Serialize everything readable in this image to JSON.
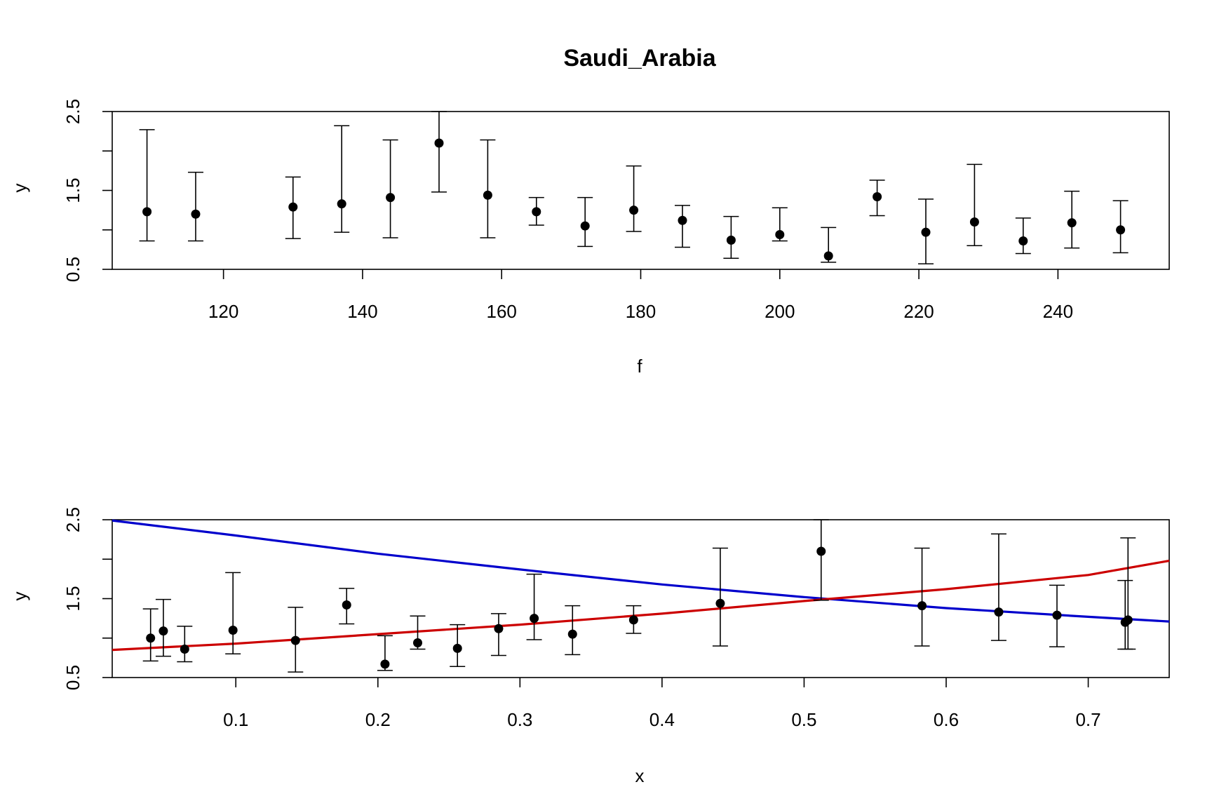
{
  "title": "Saudi_Arabia",
  "chart_data": [
    {
      "type": "scatter",
      "error_bars": true,
      "xlabel": "f",
      "ylabel": "y",
      "xlim": [
        104,
        256
      ],
      "ylim": [
        0.5,
        2.5
      ],
      "xticks": [
        120,
        140,
        160,
        180,
        200,
        220,
        240
      ],
      "yticks": [
        0.5,
        1.5,
        2.5
      ],
      "yticks_minor": [
        1.0,
        2.0
      ],
      "points": [
        {
          "x": 109,
          "y": 1.23,
          "lo": 0.86,
          "hi": 2.27
        },
        {
          "x": 116,
          "y": 1.2,
          "lo": 0.86,
          "hi": 1.73
        },
        {
          "x": 130,
          "y": 1.29,
          "lo": 0.89,
          "hi": 1.67
        },
        {
          "x": 137,
          "y": 1.33,
          "lo": 0.97,
          "hi": 2.32
        },
        {
          "x": 144,
          "y": 1.41,
          "lo": 0.9,
          "hi": 2.14
        },
        {
          "x": 151,
          "y": 2.1,
          "lo": 1.48,
          "hi": 2.5
        },
        {
          "x": 158,
          "y": 1.44,
          "lo": 0.9,
          "hi": 2.14
        },
        {
          "x": 165,
          "y": 1.23,
          "lo": 1.06,
          "hi": 1.41
        },
        {
          "x": 172,
          "y": 1.05,
          "lo": 0.79,
          "hi": 1.41
        },
        {
          "x": 179,
          "y": 1.25,
          "lo": 0.98,
          "hi": 1.81
        },
        {
          "x": 186,
          "y": 1.12,
          "lo": 0.78,
          "hi": 1.31
        },
        {
          "x": 193,
          "y": 0.87,
          "lo": 0.64,
          "hi": 1.17
        },
        {
          "x": 200,
          "y": 0.94,
          "lo": 0.86,
          "hi": 1.28
        },
        {
          "x": 207,
          "y": 0.67,
          "lo": 0.59,
          "hi": 1.03
        },
        {
          "x": 214,
          "y": 1.42,
          "lo": 1.18,
          "hi": 1.63
        },
        {
          "x": 221,
          "y": 0.97,
          "lo": 0.57,
          "hi": 1.39
        },
        {
          "x": 228,
          "y": 1.1,
          "lo": 0.8,
          "hi": 1.83
        },
        {
          "x": 235,
          "y": 0.86,
          "lo": 0.7,
          "hi": 1.15
        },
        {
          "x": 242,
          "y": 1.09,
          "lo": 0.77,
          "hi": 1.49
        },
        {
          "x": 249,
          "y": 1.0,
          "lo": 0.71,
          "hi": 1.37
        }
      ]
    },
    {
      "type": "scatter",
      "error_bars": true,
      "xlabel": "x",
      "ylabel": "y",
      "xlim": [
        0.013,
        0.757
      ],
      "ylim": [
        0.5,
        2.5
      ],
      "xticks": [
        0.1,
        0.2,
        0.3,
        0.4,
        0.5,
        0.6,
        0.7
      ],
      "yticks": [
        0.5,
        1.5,
        2.5
      ],
      "yticks_minor": [
        1.0,
        2.0
      ],
      "points": [
        {
          "x": 0.04,
          "y": 1.0,
          "lo": 0.71,
          "hi": 1.37
        },
        {
          "x": 0.049,
          "y": 1.09,
          "lo": 0.77,
          "hi": 1.49
        },
        {
          "x": 0.064,
          "y": 0.86,
          "lo": 0.7,
          "hi": 1.15
        },
        {
          "x": 0.098,
          "y": 1.1,
          "lo": 0.8,
          "hi": 1.83
        },
        {
          "x": 0.142,
          "y": 0.97,
          "lo": 0.57,
          "hi": 1.39
        },
        {
          "x": 0.178,
          "y": 1.42,
          "lo": 1.18,
          "hi": 1.63
        },
        {
          "x": 0.205,
          "y": 0.67,
          "lo": 0.59,
          "hi": 1.03
        },
        {
          "x": 0.228,
          "y": 0.94,
          "lo": 0.86,
          "hi": 1.28
        },
        {
          "x": 0.256,
          "y": 0.87,
          "lo": 0.64,
          "hi": 1.17
        },
        {
          "x": 0.285,
          "y": 1.12,
          "lo": 0.78,
          "hi": 1.31
        },
        {
          "x": 0.31,
          "y": 1.25,
          "lo": 0.98,
          "hi": 1.81
        },
        {
          "x": 0.337,
          "y": 1.05,
          "lo": 0.79,
          "hi": 1.41
        },
        {
          "x": 0.38,
          "y": 1.23,
          "lo": 1.06,
          "hi": 1.41
        },
        {
          "x": 0.441,
          "y": 1.44,
          "lo": 0.9,
          "hi": 2.14
        },
        {
          "x": 0.512,
          "y": 2.1,
          "lo": 1.48,
          "hi": 2.5
        },
        {
          "x": 0.583,
          "y": 1.41,
          "lo": 0.9,
          "hi": 2.14
        },
        {
          "x": 0.637,
          "y": 1.33,
          "lo": 0.97,
          "hi": 2.32
        },
        {
          "x": 0.678,
          "y": 1.29,
          "lo": 0.89,
          "hi": 1.67
        },
        {
          "x": 0.726,
          "y": 1.2,
          "lo": 0.86,
          "hi": 1.73
        },
        {
          "x": 0.728,
          "y": 1.23,
          "lo": 0.86,
          "hi": 2.27
        }
      ],
      "lines": [
        {
          "color": "#0000cc",
          "x": [
            0.013,
            0.1,
            0.2,
            0.3,
            0.4,
            0.5,
            0.6,
            0.7,
            0.757
          ],
          "y": [
            2.49,
            2.3,
            2.07,
            1.87,
            1.68,
            1.52,
            1.38,
            1.27,
            1.21
          ]
        },
        {
          "color": "#cc0000",
          "x": [
            0.013,
            0.1,
            0.2,
            0.3,
            0.4,
            0.5,
            0.6,
            0.7,
            0.757
          ],
          "y": [
            0.85,
            0.93,
            1.05,
            1.17,
            1.31,
            1.47,
            1.62,
            1.8,
            1.98
          ]
        }
      ]
    }
  ]
}
